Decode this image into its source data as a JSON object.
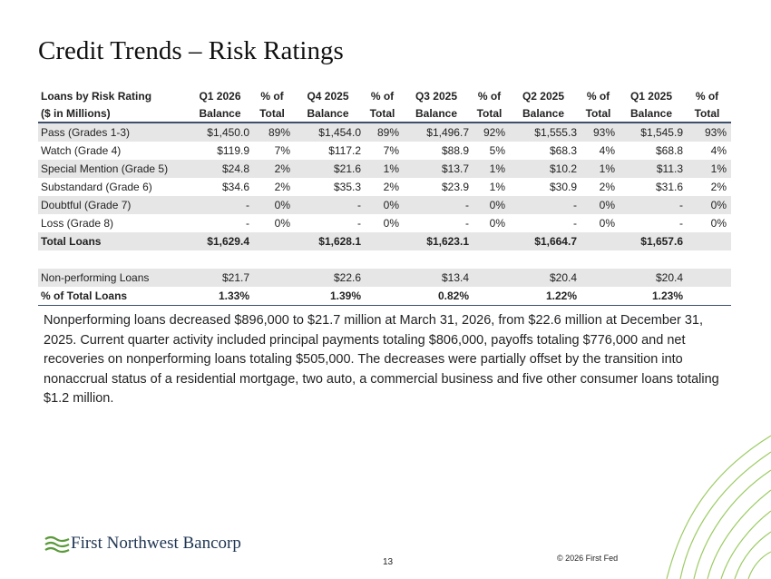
{
  "header": {
    "title": "Credit Trends – Risk Ratings"
  },
  "table": {
    "header_rows": [
      [
        "Loans by Risk Rating",
        "Q1 2026",
        "% of",
        "Q4 2025",
        "% of",
        "Q3 2025",
        "% of",
        "Q2 2025",
        "% of",
        "Q1 2025",
        "% of"
      ],
      [
        "($ in Millions)",
        "Balance",
        "Total",
        "Balance",
        "Total",
        "Balance",
        "Total",
        "Balance",
        "Total",
        "Balance",
        "Total"
      ]
    ],
    "rows": [
      [
        "Pass (Grades 1-3)",
        "$1,450.0",
        "89%",
        "$1,454.0",
        "89%",
        "$1,496.7",
        "92%",
        "$1,555.3",
        "93%",
        "$1,545.9",
        "93%"
      ],
      [
        "Watch (Grade 4)",
        "$119.9",
        "7%",
        "$117.2",
        "7%",
        "$88.9",
        "5%",
        "$68.3",
        "4%",
        "$68.8",
        "4%"
      ],
      [
        "Special Mention (Grade 5)",
        "$24.8",
        "2%",
        "$21.6",
        "1%",
        "$13.7",
        "1%",
        "$10.2",
        "1%",
        "$11.3",
        "1%"
      ],
      [
        "Substandard (Grade 6)",
        "$34.6",
        "2%",
        "$35.3",
        "2%",
        "$23.9",
        "1%",
        "$30.9",
        "2%",
        "$31.6",
        "2%"
      ],
      [
        "Doubtful (Grade 7)",
        "-",
        "0%",
        "-",
        "0%",
        "-",
        "0%",
        "-",
        "0%",
        "-",
        "0%"
      ],
      [
        "Loss (Grade 8)",
        "-",
        "0%",
        "-",
        "0%",
        "-",
        "0%",
        "-",
        "0%",
        "-",
        "0%"
      ],
      [
        "Total Loans",
        "$1,629.4",
        null,
        "$1,628.1",
        null,
        "$1,623.1",
        null,
        "$1,664.7",
        null,
        "$1,657.6",
        null
      ]
    ],
    "npl_rows": [
      [
        "Non-performing Loans",
        "$21.7",
        null,
        "$22.6",
        null,
        "$13.4",
        null,
        "$20.4",
        null,
        "$20.4",
        null
      ],
      [
        "% of Total Loans",
        "1.33%",
        null,
        "1.39%",
        null,
        "0.82%",
        null,
        "1.22%",
        null,
        "1.23%",
        null
      ]
    ]
  },
  "paragraph": "Nonperforming loans decreased $896,000 to $21.7 million at March 31, 2026, from $22.6 million at December 31, 2025. Current quarter activity included principal payments totaling $806,000, payoffs totaling $776,000 and net recoveries on nonperforming loans totaling $505,000. The decreases were partially offset by the transition into nonaccrual status of a residential mortgage, two auto, a commercial business and five other consumer loans totaling $1.2 million.",
  "footer": {
    "logo": "First Northwest Bancorp",
    "page": "13",
    "copyright": "© 2026 First Fed"
  }
}
